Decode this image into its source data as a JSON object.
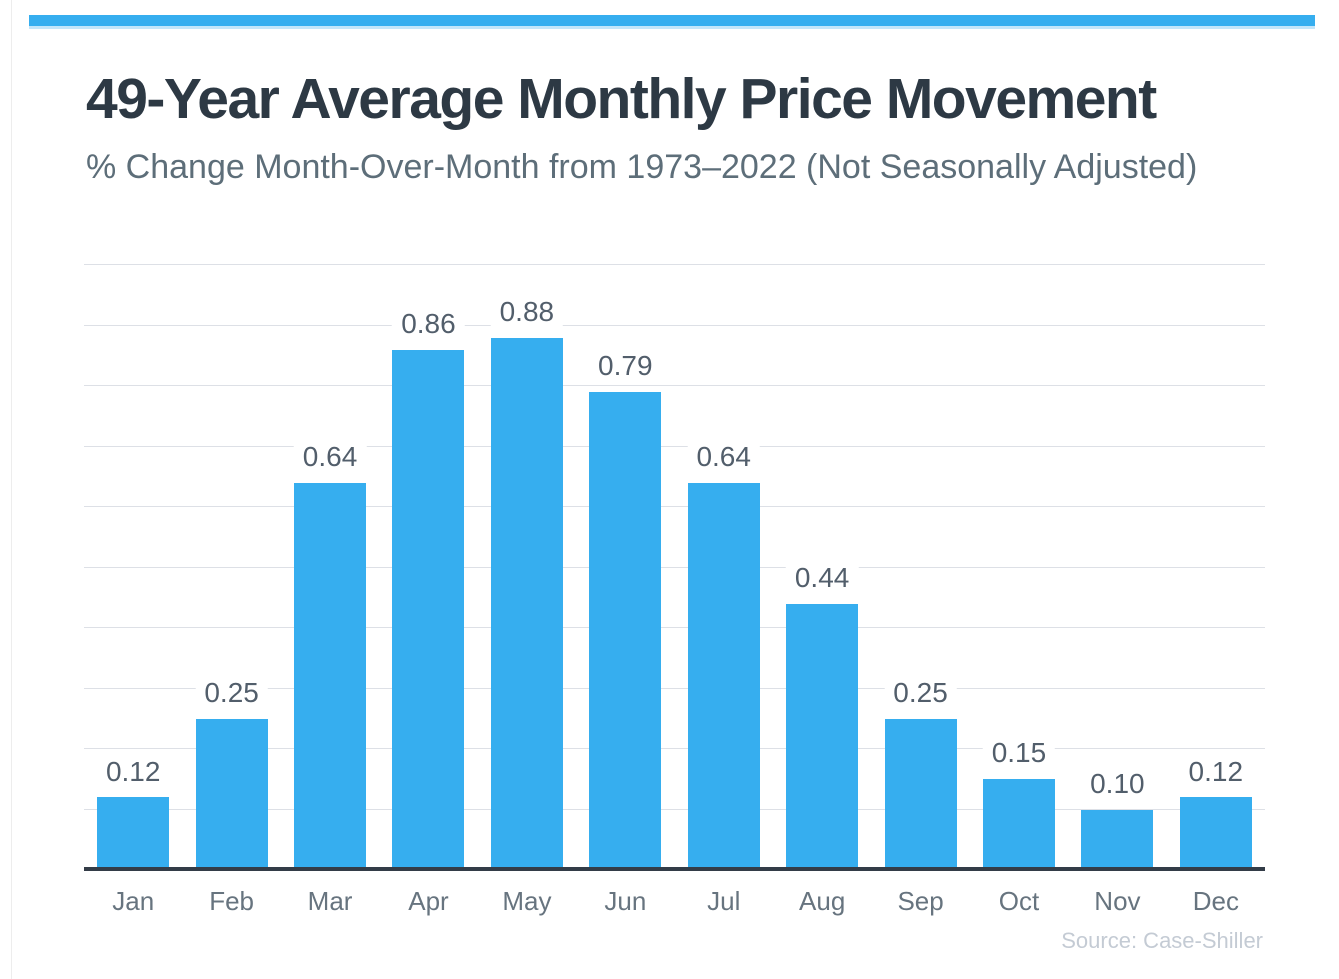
{
  "accent_color": "#36aeef",
  "header": {
    "title": "49-Year Average Monthly Price Movement",
    "subtitle": "% Change Month-Over-Month from 1973–2022 (Not Seasonally Adjusted)"
  },
  "source_note": "Source: Case-Shiller",
  "chart_data": {
    "type": "bar",
    "title": "49-Year Average Monthly Price Movement",
    "subtitle": "% Change Month-Over-Month from 1973–2022 (Not Seasonally Adjusted)",
    "categories": [
      "Jan",
      "Feb",
      "Mar",
      "Apr",
      "May",
      "Jun",
      "Jul",
      "Aug",
      "Sep",
      "Oct",
      "Nov",
      "Dec"
    ],
    "values": [
      0.12,
      0.25,
      0.64,
      0.86,
      0.88,
      0.79,
      0.64,
      0.44,
      0.25,
      0.15,
      0.1,
      0.12
    ],
    "value_labels": [
      "0.12",
      "0.25",
      "0.64",
      "0.86",
      "0.88",
      "0.79",
      "0.64",
      "0.44",
      "0.25",
      "0.15",
      "0.10",
      "0.12"
    ],
    "xlabel": "",
    "ylabel": "",
    "ylim": [
      0,
      1.0
    ],
    "gridline_step": 0.1,
    "grid": "horizontal",
    "legend": "none",
    "y_axis_labels_visible": false,
    "bar_color": "#36aeef",
    "axis_color": "#333c47",
    "gridline_color": "#dde0e6",
    "value_label_color": "#525e6b",
    "tick_label_color": "#67747f",
    "source": "Source: Case-Shiller"
  }
}
